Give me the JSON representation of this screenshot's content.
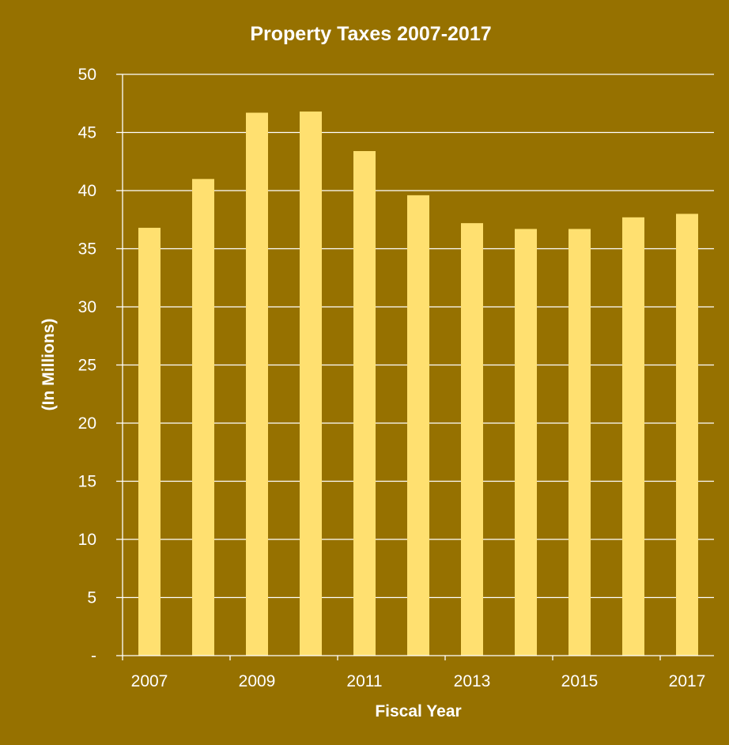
{
  "chart_data": {
    "type": "bar",
    "title": "Property Taxes 2007-2017",
    "xlabel": "Fiscal Year",
    "ylabel": "(In Millions)",
    "categories": [
      "2007",
      "2008",
      "2009",
      "2010",
      "2011",
      "2012",
      "2013",
      "2014",
      "2015",
      "2016",
      "2017"
    ],
    "x_tick_labels": [
      "2007",
      "",
      "2009",
      "",
      "2011",
      "",
      "2013",
      "",
      "2015",
      "",
      "2017"
    ],
    "values": [
      36.8,
      41.0,
      46.7,
      46.8,
      43.4,
      39.6,
      37.2,
      36.7,
      36.7,
      37.7,
      38.0
    ],
    "ylim": [
      0,
      50
    ],
    "y_ticks": [
      0,
      5,
      10,
      15,
      20,
      25,
      30,
      35,
      40,
      45,
      50
    ],
    "y_tick_labels": [
      "-",
      "5",
      "10",
      "15",
      "20",
      "25",
      "30",
      "35",
      "40",
      "45",
      "50"
    ],
    "grid": true,
    "legend": "none",
    "colors": {
      "background": "#967100",
      "bar": "#ffe070",
      "gridline": "#ffffff",
      "text": "#ffffff"
    }
  }
}
